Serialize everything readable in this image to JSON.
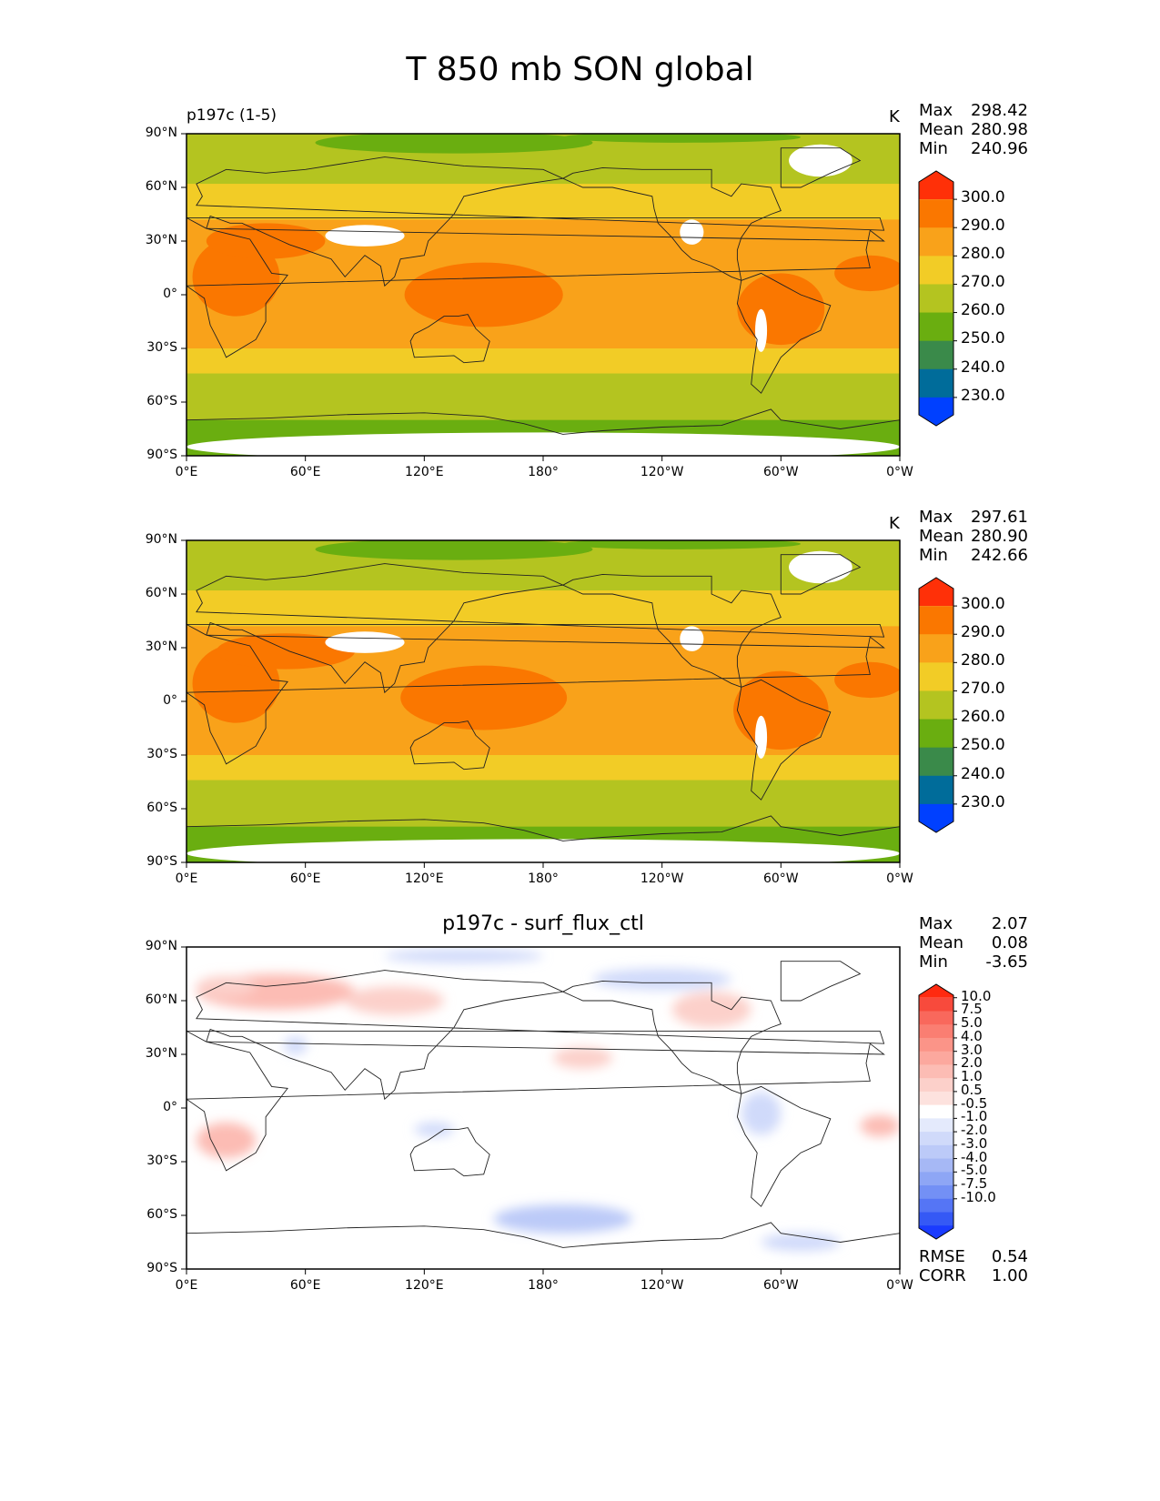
{
  "figure": {
    "title": "T 850 mb SON global",
    "lon_ticks": [
      "0°E",
      "60°E",
      "120°E",
      "180°",
      "120°W",
      "60°W",
      "0°W"
    ],
    "lat_ticks": [
      "90°N",
      "60°N",
      "30°N",
      "0°",
      "30°S",
      "60°S",
      "90°S"
    ]
  },
  "colors": {
    "temperature_scale": [
      "#0040ff",
      "#006c9a",
      "#3a8a4a",
      "#6aae10",
      "#b4c420",
      "#f2cc26",
      "#f9a21a",
      "#fa7700",
      "#ff3008"
    ],
    "temperature_missing": "#ffffff",
    "difference_scale": [
      "#1a3bff",
      "#3559f5",
      "#5575f5",
      "#7390f5",
      "#8ea6f5",
      "#a6b8f5",
      "#bccaf8",
      "#d0dafa",
      "#e4eafc",
      "#ffffff",
      "#fde2de",
      "#fcd0ca",
      "#fcbcb4",
      "#fca89e",
      "#fb9488",
      "#fa7e72",
      "#f9685c",
      "#f84a3c",
      "#ff2a10"
    ]
  },
  "panels": [
    {
      "subtitle_left": "p197c (1-5)",
      "subtitle_center": "",
      "units": "K",
      "stats": {
        "max_label": "Max",
        "max": "298.42",
        "mean_label": "Mean",
        "mean": "280.98",
        "min_label": "Min",
        "min": "240.96"
      },
      "colorbar": {
        "labels": [
          "300.0",
          "290.0",
          "280.0",
          "270.0",
          "260.0",
          "250.0",
          "240.0",
          "230.0"
        ]
      },
      "map_visual": {
        "bands": [
          {
            "lat_top": 90,
            "lat_bottom": 78,
            "level": 4
          },
          {
            "lat_top": 78,
            "lat_bottom": 62,
            "level": 4
          },
          {
            "lat_top": 62,
            "lat_bottom": 42,
            "level": 5
          },
          {
            "lat_top": 42,
            "lat_bottom": 28,
            "level": 6
          },
          {
            "lat_top": 28,
            "lat_bottom": -30,
            "level": 6
          },
          {
            "lat_top": -30,
            "lat_bottom": -44,
            "level": 5
          },
          {
            "lat_top": -44,
            "lat_bottom": -70,
            "level": 4
          },
          {
            "lat_top": -70,
            "lat_bottom": -90,
            "level": 3
          }
        ],
        "hot_regions": [
          {
            "lon": 25,
            "lat": 10,
            "rlon": 22,
            "rlat": 22,
            "level": 7
          },
          {
            "lon": 150,
            "lat": 0,
            "rlon": 40,
            "rlat": 18,
            "level": 7
          },
          {
            "lon": 300,
            "lat": -8,
            "rlon": 22,
            "rlat": 20,
            "level": 7
          },
          {
            "lon": 345,
            "lat": 12,
            "rlon": 18,
            "rlat": 10,
            "level": 7
          },
          {
            "lon": 40,
            "lat": 30,
            "rlon": 30,
            "rlat": 10,
            "level": 7
          }
        ],
        "cold_regions": [
          {
            "lon": 135,
            "lat": 85,
            "rlon": 70,
            "rlat": 6,
            "level": 3
          },
          {
            "lon": 250,
            "lat": 88,
            "rlon": 60,
            "rlat": 3,
            "level": 3
          }
        ],
        "missing_regions": [
          {
            "lon": 320,
            "lat": 75,
            "rlon": 16,
            "rlat": 9
          },
          {
            "lon": 90,
            "lat": 33,
            "rlon": 20,
            "rlat": 6
          },
          {
            "lon": 255,
            "lat": 35,
            "rlon": 6,
            "rlat": 7
          },
          {
            "lon": 290,
            "lat": -20,
            "rlon": 3,
            "rlat": 12
          },
          {
            "lon": 180,
            "lat": -85,
            "rlon": 180,
            "rlat": 8
          }
        ]
      }
    },
    {
      "subtitle_left": "",
      "subtitle_center": "",
      "units": "K",
      "stats": {
        "max_label": "Max",
        "max": "297.61",
        "mean_label": "Mean",
        "mean": "280.90",
        "min_label": "Min",
        "min": "242.66"
      },
      "colorbar": {
        "labels": [
          "300.0",
          "290.0",
          "280.0",
          "270.0",
          "260.0",
          "250.0",
          "240.0",
          "230.0"
        ]
      },
      "map_visual": {
        "bands": [
          {
            "lat_top": 90,
            "lat_bottom": 78,
            "level": 4
          },
          {
            "lat_top": 78,
            "lat_bottom": 62,
            "level": 4
          },
          {
            "lat_top": 62,
            "lat_bottom": 42,
            "level": 5
          },
          {
            "lat_top": 42,
            "lat_bottom": 28,
            "level": 6
          },
          {
            "lat_top": 28,
            "lat_bottom": -30,
            "level": 6
          },
          {
            "lat_top": -30,
            "lat_bottom": -44,
            "level": 5
          },
          {
            "lat_top": -44,
            "lat_bottom": -70,
            "level": 4
          },
          {
            "lat_top": -70,
            "lat_bottom": -90,
            "level": 3
          }
        ],
        "hot_regions": [
          {
            "lon": 25,
            "lat": 10,
            "rlon": 22,
            "rlat": 22,
            "level": 7
          },
          {
            "lon": 150,
            "lat": 2,
            "rlon": 42,
            "rlat": 18,
            "level": 7
          },
          {
            "lon": 300,
            "lat": -5,
            "rlon": 24,
            "rlat": 22,
            "level": 7
          },
          {
            "lon": 345,
            "lat": 12,
            "rlon": 18,
            "rlat": 10,
            "level": 7
          },
          {
            "lon": 50,
            "lat": 28,
            "rlon": 35,
            "rlat": 10,
            "level": 7
          }
        ],
        "cold_regions": [
          {
            "lon": 135,
            "lat": 85,
            "rlon": 70,
            "rlat": 6,
            "level": 3
          },
          {
            "lon": 250,
            "lat": 88,
            "rlon": 60,
            "rlat": 3,
            "level": 3
          }
        ],
        "missing_regions": [
          {
            "lon": 320,
            "lat": 75,
            "rlon": 16,
            "rlat": 9
          },
          {
            "lon": 90,
            "lat": 33,
            "rlon": 20,
            "rlat": 6
          },
          {
            "lon": 255,
            "lat": 35,
            "rlon": 6,
            "rlat": 7
          },
          {
            "lon": 290,
            "lat": -20,
            "rlon": 3,
            "rlat": 12
          },
          {
            "lon": 180,
            "lat": -85,
            "rlon": 180,
            "rlat": 8
          }
        ]
      }
    },
    {
      "subtitle_left": "",
      "subtitle_center": "p197c - surf_flux_ctl",
      "units": "",
      "stats": {
        "max_label": "Max",
        "max": "2.07",
        "mean_label": "Mean",
        "mean": "0.08",
        "min_label": "Min",
        "min": "-3.65"
      },
      "extra_stats": {
        "rmse_label": "RMSE",
        "rmse": "0.54",
        "corr_label": "CORR",
        "corr": "1.00"
      },
      "colorbar": {
        "labels": [
          "10.0",
          "7.5",
          "5.0",
          "4.0",
          "3.0",
          "2.0",
          "1.0",
          "0.5",
          "-0.5",
          "-1.0",
          "-2.0",
          "-3.0",
          "-4.0",
          "-5.0",
          "-7.5",
          "-10.0"
        ]
      },
      "map_visual": {
        "blobs": [
          {
            "lon": 45,
            "lat": 65,
            "rlon": 40,
            "rlat": 10,
            "level": 12
          },
          {
            "lon": 20,
            "lat": 68,
            "rlon": 15,
            "rlat": 6,
            "level": 11
          },
          {
            "lon": 105,
            "lat": 60,
            "rlon": 25,
            "rlat": 8,
            "level": 11
          },
          {
            "lon": 240,
            "lat": 72,
            "rlon": 35,
            "rlat": 6,
            "level": 7
          },
          {
            "lon": 140,
            "lat": 85,
            "rlon": 40,
            "rlat": 4,
            "level": 7
          },
          {
            "lon": 265,
            "lat": 55,
            "rlon": 20,
            "rlat": 10,
            "level": 11
          },
          {
            "lon": 200,
            "lat": 28,
            "rlon": 15,
            "rlat": 6,
            "level": 11
          },
          {
            "lon": 290,
            "lat": -3,
            "rlon": 10,
            "rlat": 12,
            "level": 7
          },
          {
            "lon": 20,
            "lat": -18,
            "rlon": 15,
            "rlat": 10,
            "level": 12
          },
          {
            "lon": 350,
            "lat": -10,
            "rlon": 10,
            "rlat": 6,
            "level": 12
          },
          {
            "lon": 190,
            "lat": -62,
            "rlon": 35,
            "rlat": 8,
            "level": 6
          },
          {
            "lon": 310,
            "lat": -75,
            "rlon": 20,
            "rlat": 5,
            "level": 7
          },
          {
            "lon": 55,
            "lat": 35,
            "rlon": 6,
            "rlat": 5,
            "level": 7
          },
          {
            "lon": 125,
            "lat": -12,
            "rlon": 10,
            "rlat": 4,
            "level": 7
          }
        ]
      }
    }
  ]
}
